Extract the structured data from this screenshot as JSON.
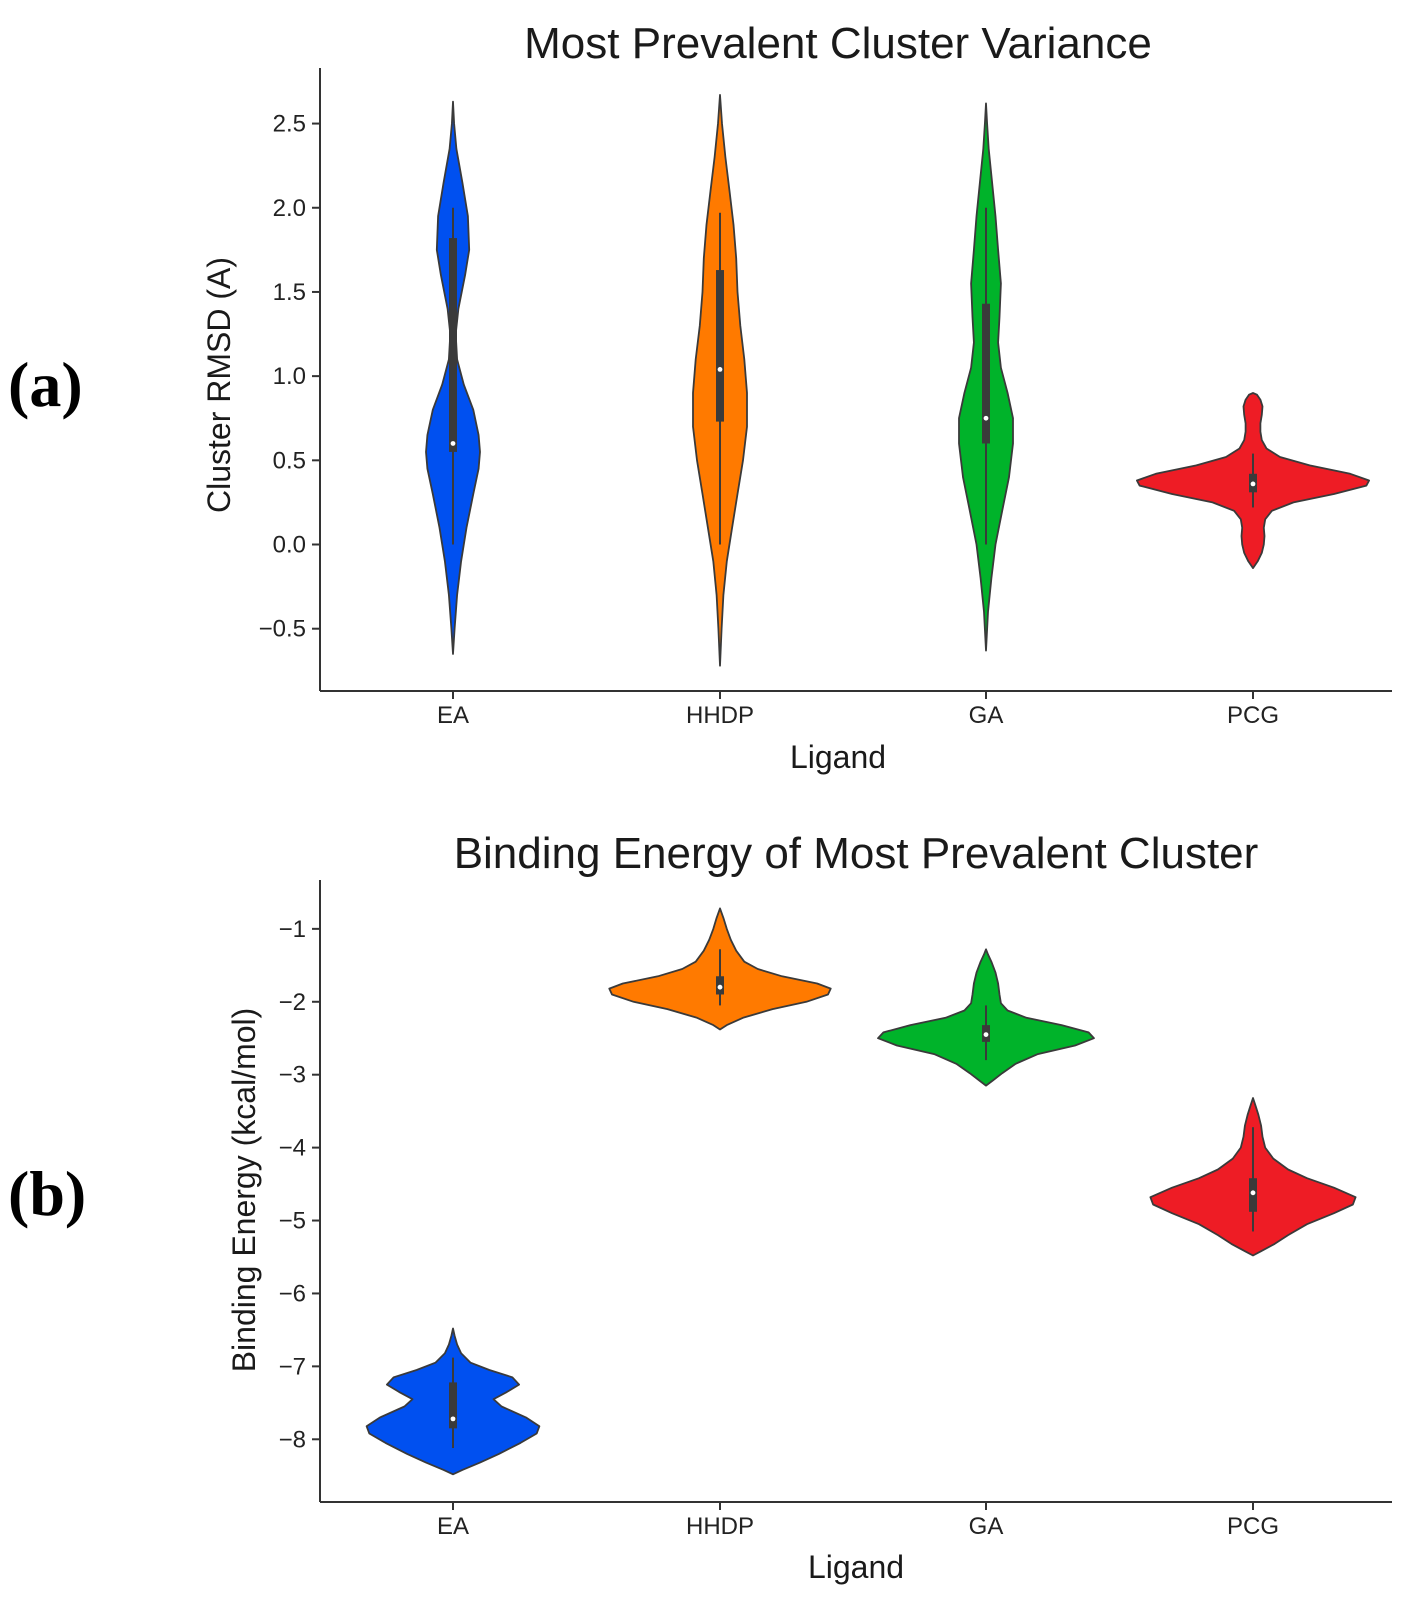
{
  "panel_labels": [
    "(a)",
    "(b)"
  ],
  "chart_data": [
    {
      "type": "violin",
      "title": "Most Prevalent Cluster Variance",
      "xlabel": "Ligand",
      "ylabel": "Cluster RMSD (A)",
      "categories": [
        "EA",
        "HHDP",
        "GA",
        "PCG"
      ],
      "ylim": [
        -0.87,
        2.83
      ],
      "yticks": [
        -0.5,
        0.0,
        0.5,
        1.0,
        1.5,
        2.0,
        2.5
      ],
      "ytick_labels": [
        "−0.5",
        "0.0",
        "0.5",
        "1.0",
        "1.5",
        "2.0",
        "2.5"
      ],
      "colors": [
        "#0050f0",
        "#ff7a00",
        "#00b32a",
        "#ee1c25"
      ],
      "violins": [
        {
          "name": "EA",
          "median": 0.6,
          "q1": 0.55,
          "q3": 1.82,
          "whisker_low": 0.0,
          "whisker_high": 2.0,
          "profile": [
            [
              -0.65,
              0.0
            ],
            [
              -0.5,
              0.012
            ],
            [
              -0.3,
              0.03
            ],
            [
              -0.1,
              0.06
            ],
            [
              0.1,
              0.1
            ],
            [
              0.3,
              0.15
            ],
            [
              0.45,
              0.19
            ],
            [
              0.55,
              0.2
            ],
            [
              0.65,
              0.19
            ],
            [
              0.8,
              0.15
            ],
            [
              0.95,
              0.08
            ],
            [
              1.1,
              0.03
            ],
            [
              1.25,
              0.02
            ],
            [
              1.4,
              0.04
            ],
            [
              1.6,
              0.09
            ],
            [
              1.75,
              0.12
            ],
            [
              1.95,
              0.11
            ],
            [
              2.15,
              0.07
            ],
            [
              2.35,
              0.025
            ],
            [
              2.5,
              0.008
            ],
            [
              2.63,
              0.0
            ]
          ]
        },
        {
          "name": "HHDP",
          "median": 1.04,
          "q1": 0.73,
          "q3": 1.63,
          "whisker_low": 0.0,
          "whisker_high": 1.97,
          "profile": [
            [
              -0.72,
              0.0
            ],
            [
              -0.5,
              0.012
            ],
            [
              -0.3,
              0.025
            ],
            [
              -0.1,
              0.05
            ],
            [
              0.1,
              0.09
            ],
            [
              0.3,
              0.13
            ],
            [
              0.5,
              0.17
            ],
            [
              0.7,
              0.2
            ],
            [
              0.9,
              0.2
            ],
            [
              1.1,
              0.18
            ],
            [
              1.3,
              0.15
            ],
            [
              1.5,
              0.13
            ],
            [
              1.7,
              0.12
            ],
            [
              1.9,
              0.1
            ],
            [
              2.1,
              0.07
            ],
            [
              2.3,
              0.04
            ],
            [
              2.5,
              0.015
            ],
            [
              2.67,
              0.0
            ]
          ]
        },
        {
          "name": "GA",
          "median": 0.75,
          "q1": 0.6,
          "q3": 1.43,
          "whisker_low": 0.0,
          "whisker_high": 2.0,
          "profile": [
            [
              -0.63,
              0.0
            ],
            [
              -0.4,
              0.015
            ],
            [
              -0.2,
              0.04
            ],
            [
              0.0,
              0.07
            ],
            [
              0.2,
              0.12
            ],
            [
              0.4,
              0.17
            ],
            [
              0.6,
              0.2
            ],
            [
              0.75,
              0.2
            ],
            [
              0.9,
              0.16
            ],
            [
              1.05,
              0.11
            ],
            [
              1.2,
              0.09
            ],
            [
              1.35,
              0.1
            ],
            [
              1.55,
              0.11
            ],
            [
              1.75,
              0.09
            ],
            [
              1.95,
              0.07
            ],
            [
              2.15,
              0.045
            ],
            [
              2.35,
              0.02
            ],
            [
              2.5,
              0.008
            ],
            [
              2.62,
              0.0
            ]
          ]
        },
        {
          "name": "PCG",
          "median": 0.36,
          "q1": 0.31,
          "q3": 0.42,
          "whisker_low": 0.22,
          "whisker_high": 0.54,
          "profile": [
            [
              -0.14,
              0.0
            ],
            [
              -0.1,
              0.035
            ],
            [
              -0.05,
              0.065
            ],
            [
              0.0,
              0.08
            ],
            [
              0.05,
              0.085
            ],
            [
              0.1,
              0.08
            ],
            [
              0.15,
              0.09
            ],
            [
              0.2,
              0.14
            ],
            [
              0.25,
              0.3
            ],
            [
              0.3,
              0.6
            ],
            [
              0.35,
              0.84
            ],
            [
              0.38,
              0.86
            ],
            [
              0.42,
              0.72
            ],
            [
              0.47,
              0.42
            ],
            [
              0.52,
              0.2
            ],
            [
              0.57,
              0.1
            ],
            [
              0.62,
              0.065
            ],
            [
              0.67,
              0.055
            ],
            [
              0.72,
              0.055
            ],
            [
              0.77,
              0.065
            ],
            [
              0.82,
              0.07
            ],
            [
              0.86,
              0.055
            ],
            [
              0.89,
              0.03
            ],
            [
              0.9,
              0.0
            ]
          ]
        }
      ]
    },
    {
      "type": "violin",
      "title": "Binding Energy of Most Prevalent Cluster",
      "xlabel": "Ligand",
      "ylabel": "Binding Energy (kcal/mol)",
      "categories": [
        "EA",
        "HHDP",
        "GA",
        "PCG"
      ],
      "ylim": [
        -8.86,
        -0.33
      ],
      "yticks": [
        -8,
        -7,
        -6,
        -5,
        -4,
        -3,
        -2,
        -1
      ],
      "ytick_labels": [
        "−8",
        "−7",
        "−6",
        "−5",
        "−4",
        "−3",
        "−2",
        "−1"
      ],
      "colors": [
        "#0050f0",
        "#ff7a00",
        "#00b32a",
        "#ee1c25"
      ],
      "violins": [
        {
          "name": "EA",
          "median": -7.72,
          "q1": -7.85,
          "q3": -7.22,
          "whisker_low": -8.12,
          "whisker_high": -6.88,
          "profile": [
            [
              -8.48,
              0.0
            ],
            [
              -8.42,
              0.07
            ],
            [
              -8.32,
              0.2
            ],
            [
              -8.2,
              0.34
            ],
            [
              -8.05,
              0.5
            ],
            [
              -7.92,
              0.62
            ],
            [
              -7.82,
              0.64
            ],
            [
              -7.7,
              0.54
            ],
            [
              -7.55,
              0.36
            ],
            [
              -7.45,
              0.3
            ],
            [
              -7.35,
              0.4
            ],
            [
              -7.25,
              0.49
            ],
            [
              -7.15,
              0.44
            ],
            [
              -7.05,
              0.27
            ],
            [
              -6.95,
              0.13
            ],
            [
              -6.82,
              0.06
            ],
            [
              -6.7,
              0.03
            ],
            [
              -6.58,
              0.012
            ],
            [
              -6.48,
              0.0
            ]
          ]
        },
        {
          "name": "HHDP",
          "median": -1.8,
          "q1": -1.9,
          "q3": -1.65,
          "whisker_low": -2.05,
          "whisker_high": -1.28,
          "profile": [
            [
              -2.38,
              0.0
            ],
            [
              -2.32,
              0.05
            ],
            [
              -2.22,
              0.17
            ],
            [
              -2.1,
              0.39
            ],
            [
              -2.0,
              0.64
            ],
            [
              -1.9,
              0.8
            ],
            [
              -1.82,
              0.82
            ],
            [
              -1.75,
              0.72
            ],
            [
              -1.65,
              0.46
            ],
            [
              -1.55,
              0.28
            ],
            [
              -1.45,
              0.18
            ],
            [
              -1.3,
              0.12
            ],
            [
              -1.15,
              0.08
            ],
            [
              -1.0,
              0.05
            ],
            [
              -0.85,
              0.025
            ],
            [
              -0.72,
              0.0
            ]
          ]
        },
        {
          "name": "GA",
          "median": -2.45,
          "q1": -2.55,
          "q3": -2.32,
          "whisker_low": -2.8,
          "whisker_high": -2.05,
          "profile": [
            [
              -3.15,
              0.0
            ],
            [
              -3.08,
              0.05
            ],
            [
              -2.98,
              0.12
            ],
            [
              -2.85,
              0.22
            ],
            [
              -2.72,
              0.38
            ],
            [
              -2.6,
              0.66
            ],
            [
              -2.5,
              0.8
            ],
            [
              -2.42,
              0.76
            ],
            [
              -2.32,
              0.56
            ],
            [
              -2.22,
              0.3
            ],
            [
              -2.12,
              0.16
            ],
            [
              -2.02,
              0.11
            ],
            [
              -1.9,
              0.1
            ],
            [
              -1.75,
              0.09
            ],
            [
              -1.6,
              0.07
            ],
            [
              -1.45,
              0.04
            ],
            [
              -1.35,
              0.015
            ],
            [
              -1.28,
              0.0
            ]
          ]
        },
        {
          "name": "PCG",
          "median": -4.62,
          "q1": -4.88,
          "q3": -4.42,
          "whisker_low": -5.15,
          "whisker_high": -3.72,
          "profile": [
            [
              -5.48,
              0.0
            ],
            [
              -5.42,
              0.06
            ],
            [
              -5.32,
              0.16
            ],
            [
              -5.2,
              0.26
            ],
            [
              -5.05,
              0.4
            ],
            [
              -4.9,
              0.6
            ],
            [
              -4.78,
              0.74
            ],
            [
              -4.68,
              0.76
            ],
            [
              -4.55,
              0.6
            ],
            [
              -4.42,
              0.4
            ],
            [
              -4.3,
              0.26
            ],
            [
              -4.15,
              0.15
            ],
            [
              -4.0,
              0.09
            ],
            [
              -3.85,
              0.07
            ],
            [
              -3.7,
              0.06
            ],
            [
              -3.55,
              0.04
            ],
            [
              -3.42,
              0.018
            ],
            [
              -3.32,
              0.0
            ]
          ]
        }
      ]
    }
  ]
}
